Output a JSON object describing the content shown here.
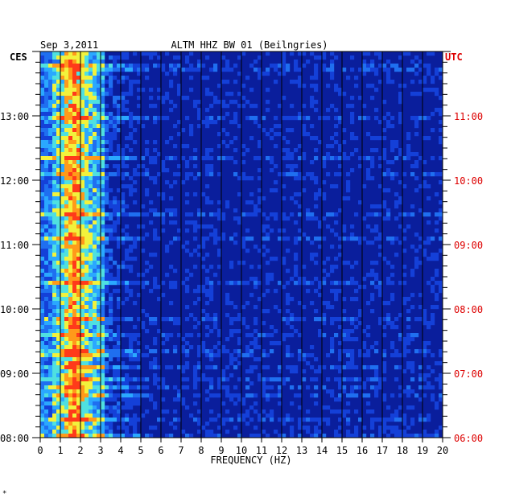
{
  "header": {
    "date": "Sep 3,2011",
    "station": "ALTM HHZ BW 01 (Beilngries)"
  },
  "chart_data": {
    "type": "heatmap",
    "title": "ALTM HHZ BW 01 (Beilngries)",
    "date": "Sep 3,2011",
    "xlabel": "FREQUENCY (HZ)",
    "xlim": [
      0,
      20
    ],
    "x_ticks": [
      "0",
      "1",
      "2",
      "3",
      "4",
      "5",
      "6",
      "7",
      "8",
      "9",
      "10",
      "11",
      "12",
      "13",
      "14",
      "15",
      "16",
      "17",
      "18",
      "19",
      "20"
    ],
    "left_axis": {
      "label": "CES",
      "ticks": [
        "08:00",
        "09:00",
        "10:00",
        "11:00",
        "12:00",
        "13:00"
      ],
      "range_hours": [
        8,
        14
      ]
    },
    "right_axis": {
      "label": "UTC",
      "ticks": [
        "06:00",
        "07:00",
        "08:00",
        "09:00",
        "10:00",
        "11:00"
      ],
      "range_hours": [
        6,
        12
      ]
    },
    "grid": "vertical lines at each 1 Hz",
    "dominant_energy_band_hz": [
      1,
      3
    ],
    "colors": {
      "background": "#0a1e9c",
      "low": "#0a22b4",
      "mid": "#2aa8ff",
      "high": "#f2f23c",
      "peak": "#ff3a1a",
      "right_axis_text": "#dd0000"
    }
  },
  "footer_mark": "*"
}
